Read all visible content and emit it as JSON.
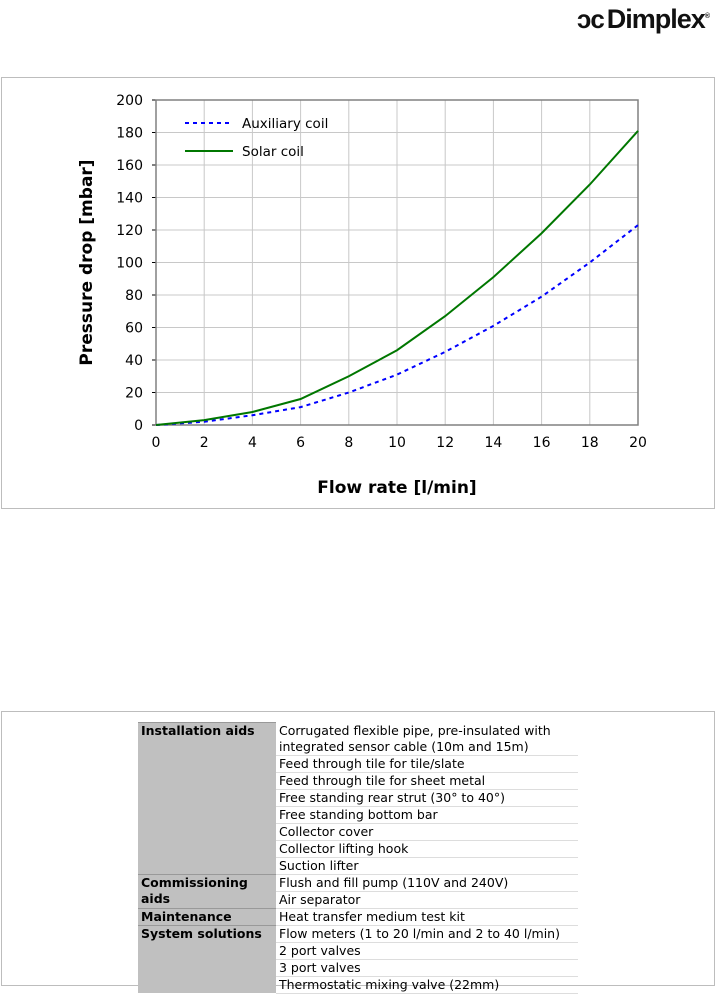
{
  "logo": {
    "text": "Dimplex",
    "registered": "®"
  },
  "chart_data": {
    "type": "line",
    "title": "",
    "xlabel": "Flow rate [l/min]",
    "ylabel": "Pressure drop [mbar]",
    "xlim": [
      0,
      20
    ],
    "ylim": [
      0,
      200
    ],
    "xticks": [
      0,
      2,
      4,
      6,
      8,
      10,
      12,
      14,
      16,
      18,
      20
    ],
    "yticks": [
      0,
      20,
      40,
      60,
      80,
      100,
      120,
      140,
      160,
      180,
      200
    ],
    "grid": true,
    "legend": "top-left",
    "x": [
      0,
      2,
      4,
      6,
      8,
      10,
      12,
      14,
      16,
      18,
      20
    ],
    "series": [
      {
        "name": "Auxiliary coil",
        "color": "#0000ff",
        "style": "dashed",
        "values": [
          0,
          2,
          6,
          11,
          20,
          31,
          45,
          61,
          79,
          100,
          123
        ]
      },
      {
        "name": "Solar coil",
        "color": "#007700",
        "style": "solid",
        "values": [
          0,
          3,
          8,
          16,
          30,
          46,
          67,
          91,
          118,
          148,
          181
        ]
      }
    ]
  },
  "table": [
    {
      "category": "Installation aids",
      "items": [
        "Corrugated flexible pipe, pre-insulated with integrated sensor cable (10m and 15m)",
        "Feed through tile for tile/slate",
        "Feed through tile for sheet metal",
        "Free standing rear strut (30° to 40°)",
        "Free standing bottom bar",
        "Collector cover",
        "Collector lifting hook",
        "Suction lifter"
      ]
    },
    {
      "category": "Commissioning aids",
      "items": [
        "Flush and fill pump (110V and 240V)",
        "Air separator"
      ]
    },
    {
      "category": "Maintenance",
      "items": [
        "Heat transfer medium test kit"
      ]
    },
    {
      "category": "System solutions",
      "items": [
        "Flow meters (1 to 20 l/min and 2 to 40 l/min)",
        "2 port valves",
        "3 port valves",
        "Thermostatic mixing valve (22mm)"
      ]
    }
  ]
}
